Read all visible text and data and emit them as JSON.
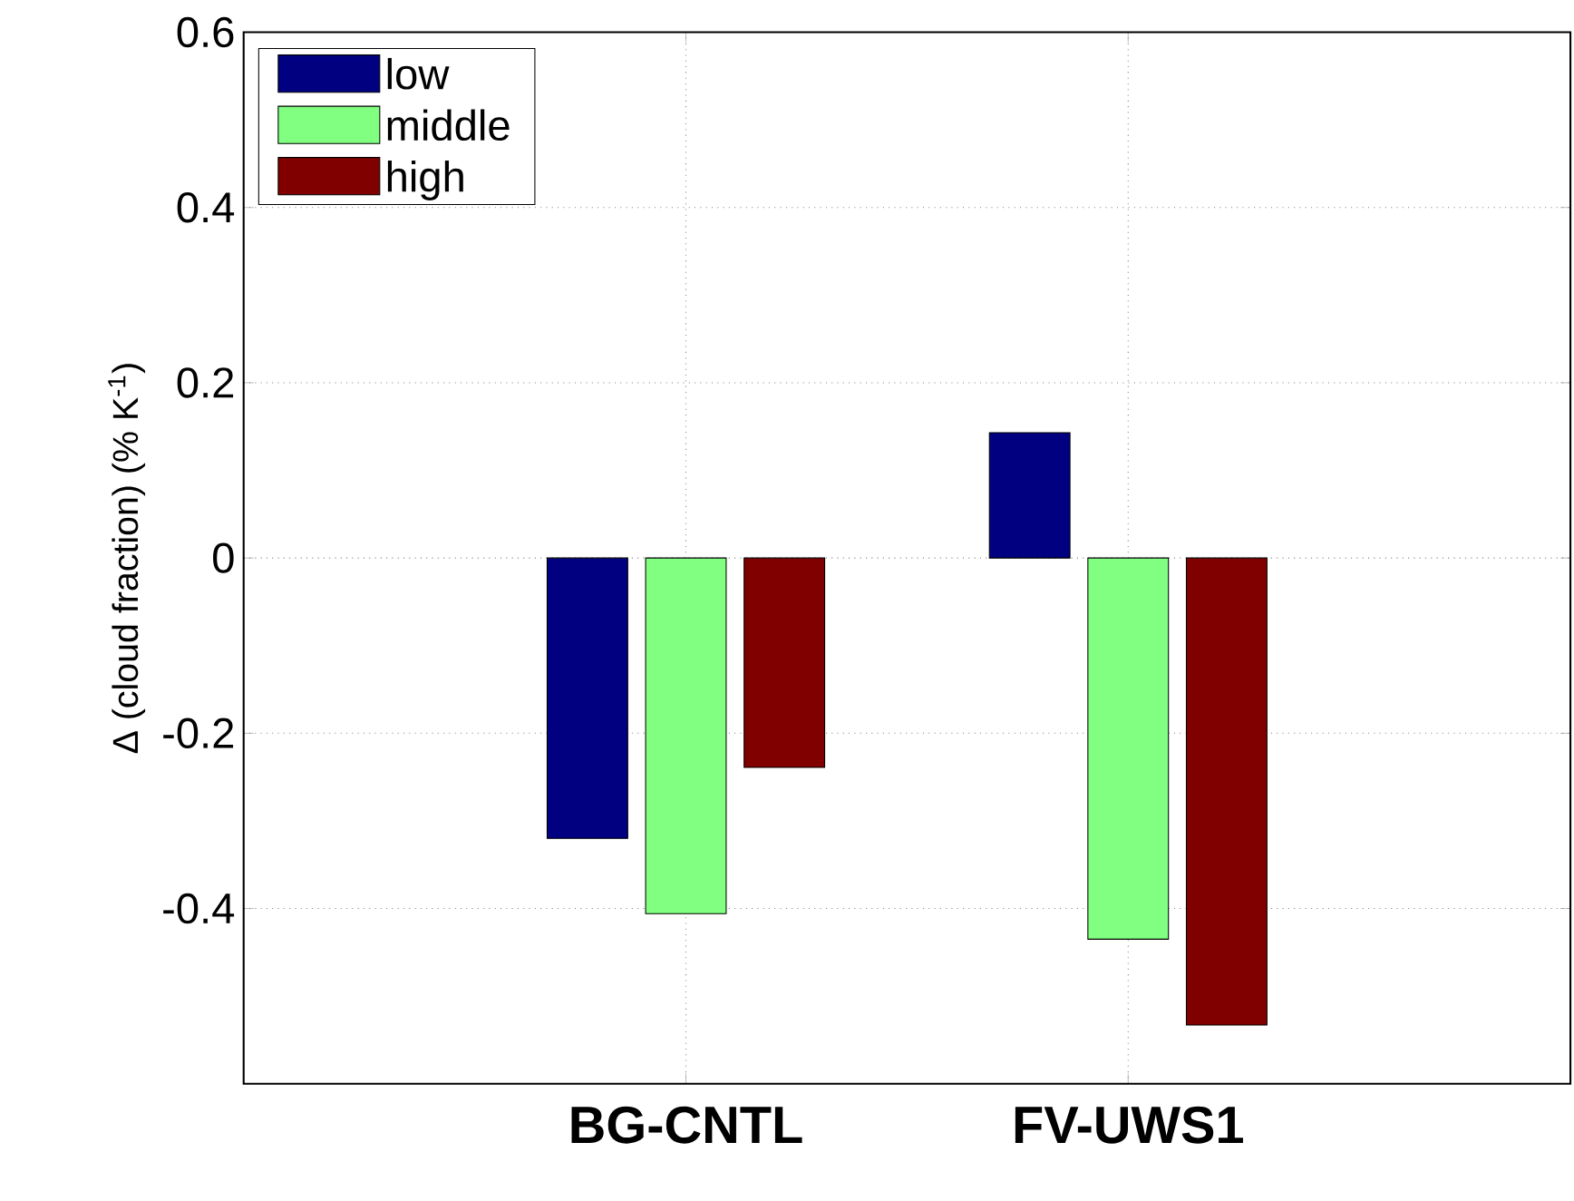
{
  "chart_data": {
    "type": "bar",
    "ylabel": "Δ (cloud fraction) (% K$^{-1}$)",
    "categories": [
      "BG-CNTL",
      "FV-UWS1"
    ],
    "series": [
      {
        "name": "low",
        "color": "#000080",
        "values": [
          -0.32,
          0.143
        ]
      },
      {
        "name": "middle",
        "color": "#80ff80",
        "values": [
          -0.406,
          -0.435
        ]
      },
      {
        "name": "high",
        "color": "#800000",
        "values": [
          -0.239,
          -0.533
        ]
      }
    ],
    "ylim": [
      -0.6,
      0.6
    ],
    "yticks": [
      -0.4,
      -0.2,
      0,
      0.2,
      0.4,
      0.6
    ],
    "grid": true,
    "legend": "top left"
  }
}
